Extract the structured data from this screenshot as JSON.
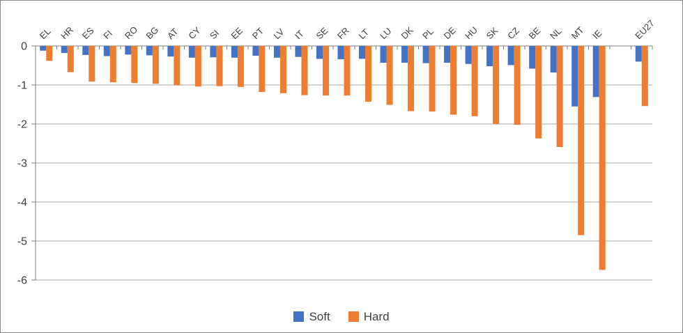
{
  "chart_data": {
    "type": "bar",
    "title": "",
    "xlabel": "",
    "ylabel": "",
    "categories": [
      "EL",
      "HR",
      "ES",
      "FI",
      "RO",
      "BG",
      "AT",
      "CY",
      "SI",
      "EE",
      "PT",
      "LV",
      "IT",
      "SE",
      "FR",
      "LT",
      "LU",
      "DK",
      "PL",
      "DE",
      "HU",
      "SK",
      "CZ",
      "BE",
      "NL",
      "MT",
      "IE",
      "",
      "EU27"
    ],
    "series": [
      {
        "name": "Soft",
        "color": "#4472C4",
        "values": [
          -0.12,
          -0.18,
          -0.23,
          -0.26,
          -0.22,
          -0.24,
          -0.27,
          -0.3,
          -0.29,
          -0.3,
          -0.25,
          -0.3,
          -0.28,
          -0.33,
          -0.34,
          -0.33,
          -0.43,
          -0.43,
          -0.44,
          -0.43,
          -0.46,
          -0.52,
          -0.49,
          -0.58,
          -0.68,
          -1.55,
          -1.31,
          null,
          -0.4
        ]
      },
      {
        "name": "Hard",
        "color": "#ED7D31",
        "values": [
          -0.38,
          -0.67,
          -0.91,
          -0.93,
          -0.95,
          -0.97,
          -1.01,
          -1.04,
          -1.03,
          -1.05,
          -1.18,
          -1.21,
          -1.26,
          -1.27,
          -1.27,
          -1.43,
          -1.51,
          -1.67,
          -1.68,
          -1.76,
          -1.8,
          -2.0,
          -2.02,
          -2.37,
          -2.59,
          -4.85,
          -5.74,
          null,
          -1.54
        ]
      }
    ],
    "ylim": [
      -6,
      0
    ],
    "yticks": [
      0,
      -1,
      -2,
      -3,
      -4,
      -5,
      -6
    ],
    "ytick_labels": [
      "0",
      "-1",
      "-2",
      "-3",
      "-4",
      "-5",
      "-6"
    ],
    "grid": true,
    "legend_position": "bottom",
    "colors": {
      "axis": "#7F7F7F",
      "gridline": "#A6A6A6",
      "tick_label": "#404040",
      "background": "#FFFFFF",
      "frame_border": "#848484"
    }
  }
}
